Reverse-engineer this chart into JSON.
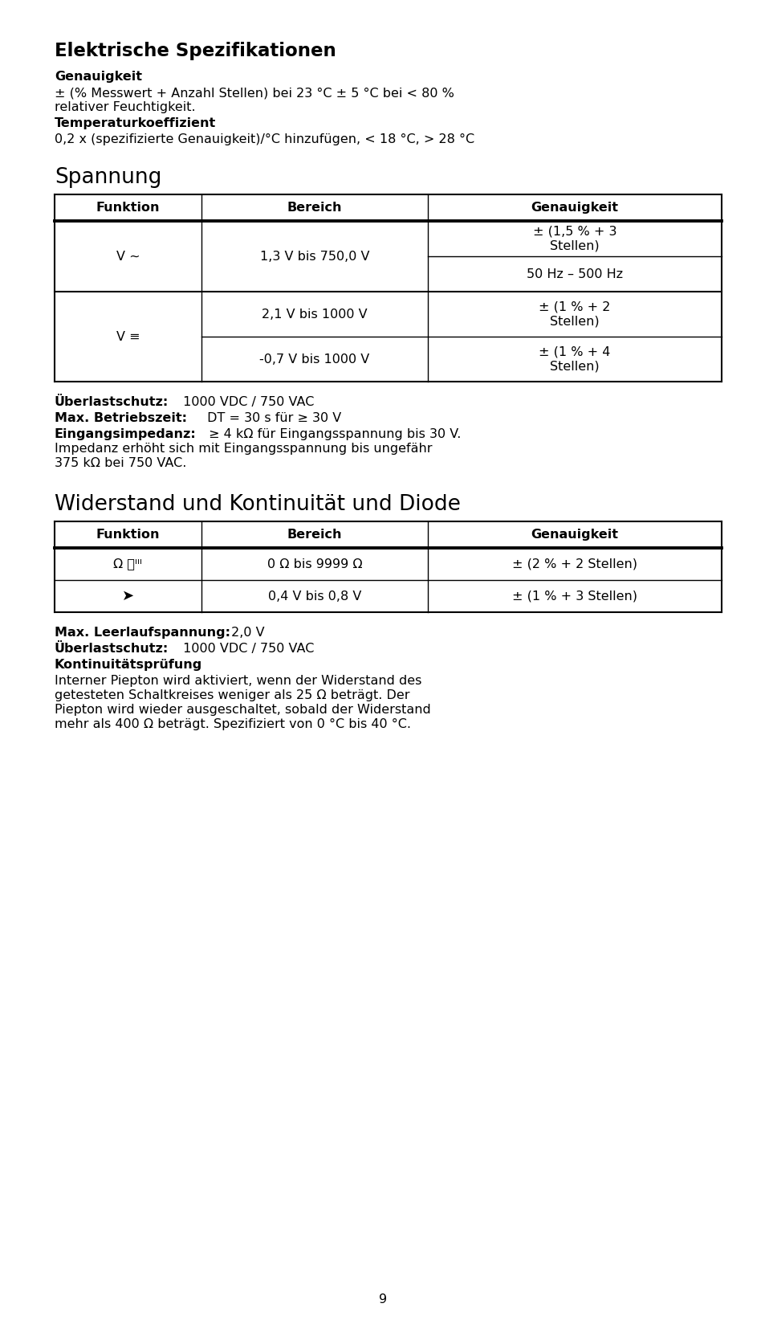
{
  "bg_color": "#ffffff",
  "page_number": "9",
  "title1": "Elektrische Spezifikationen",
  "subtitle1": "Genauigkeit",
  "text1_line1": "± (% Messwert + Anzahl Stellen) bei 23 °C ± 5 °C bei < 80 %",
  "text1_line2": "relativer Feuchtigkeit.",
  "subtitle2": "Temperaturkoeffizient",
  "text2": "0,2 x (spezifizierte Genauigkeit)/°C hinzufügen, < 18 °C, > 28 °C",
  "section1": "Spannung",
  "table1_headers": [
    "Funktion",
    "Bereich",
    "Genauigkeit"
  ],
  "section2": "Widerstand und Kontinuität und Diode",
  "table2_headers": [
    "Funktion",
    "Bereich",
    "Genauigkeit"
  ],
  "note1_bold": "Überlastschutz:",
  "note1_normal": " 1000 VDC / 750 VAC",
  "note2_bold": "Max. Betriebszeit:",
  "note2_normal": " DT = 30 s für ≥ 30 V",
  "note3_bold": "Eingangsimpedanz:",
  "note3_normal": " ≥ 4 kΩ für Eingangsspannung bis 30 V.",
  "note3_line2": "Impedanz erhöht sich mit Eingangsspannung bis ungefähr",
  "note3_line3": "375 kΩ bei 750 VAC.",
  "note4_bold": "Max. Leerlaufspannung:",
  "note4_normal": " 2,0 V",
  "note5_bold": "Überlastschutz:",
  "note5_normal": " 1000 VDC / 750 VAC",
  "note6_bold": "Kontinuitätsprüfung",
  "text3_line1": "Interner Piepton wird aktiviert, wenn der Widerstand des",
  "text3_line2": "getesteten Schaltkreises weniger als 25 Ω beträgt. Der",
  "text3_line3": "Piepton wird wieder ausgeschaltet, sobald der Widerstand",
  "text3_line4": "mehr als 400 Ω beträgt. Spezifiziert von 0 °C bis 40 °C.",
  "v_ac_funktion": "V ~",
  "v_ac_bereich": "1,3 V bis 750,0 V",
  "v_ac_acc1_line1": "± (1,5 % + 3",
  "v_ac_acc1_line2": "Stellen)",
  "v_ac_acc2": "50 Hz – 500 Hz",
  "v_dc_funktion": "V ≡",
  "v_dc_bereich1": "2,1 V bis 1000 V",
  "v_dc_acc1_line1": "± (1 % + 2",
  "v_dc_acc1_line2": "Stellen)",
  "v_dc_bereich2": "-0,7 V bis 1000 V",
  "v_dc_acc2_line1": "± (1 % + 4",
  "v_dc_acc2_line2": "Stellen)",
  "ohm_funktion": "Ω ᵜᴵᴵᴵ",
  "ohm_bereich": "0 Ω bis 9999 Ω",
  "ohm_acc": "± (2 % + 2 Stellen)",
  "diode_funktion": "➤",
  "diode_bereich": "0,4 V bis 0,8 V",
  "diode_acc": "± (1 % + 3 Stellen)"
}
